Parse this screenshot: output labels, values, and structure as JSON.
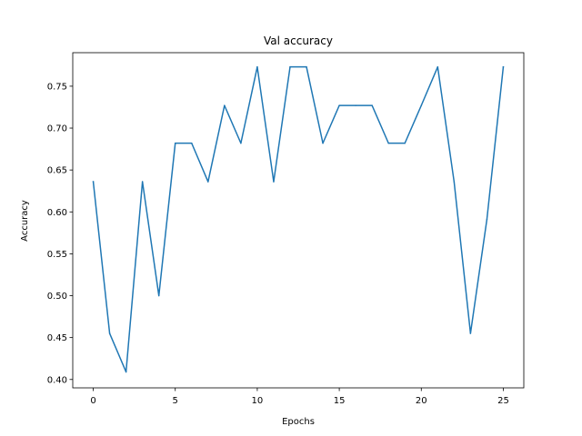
{
  "chart_data": {
    "type": "line",
    "title": "Val accuracy",
    "xlabel": "Epochs",
    "ylabel": "Accuracy",
    "xlim": [
      -1.25,
      26.25
    ],
    "ylim": [
      0.39,
      0.79
    ],
    "xticks": [
      0,
      5,
      10,
      15,
      20,
      25
    ],
    "yticks": [
      0.4,
      0.45,
      0.5,
      0.55,
      0.6,
      0.65,
      0.7,
      0.75
    ],
    "grid": false,
    "series": [
      {
        "color": "#1f77b4",
        "x": [
          0,
          1,
          2,
          3,
          4,
          5,
          6,
          7,
          8,
          9,
          10,
          11,
          12,
          13,
          14,
          15,
          16,
          17,
          18,
          19,
          20,
          21,
          22,
          23,
          24,
          25
        ],
        "y": [
          0.636,
          0.455,
          0.409,
          0.636,
          0.5,
          0.682,
          0.682,
          0.636,
          0.727,
          0.682,
          0.773,
          0.636,
          0.773,
          0.773,
          0.682,
          0.727,
          0.727,
          0.727,
          0.682,
          0.682,
          0.727,
          0.773,
          0.636,
          0.455,
          0.591,
          0.773
        ]
      }
    ]
  }
}
